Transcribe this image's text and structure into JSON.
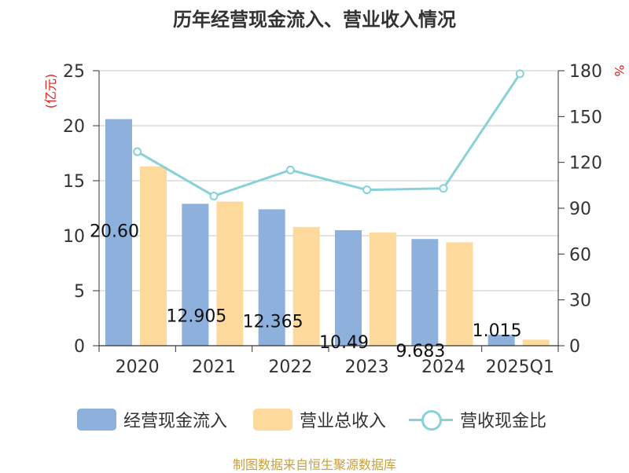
{
  "chart_data": {
    "type": "bar",
    "title": "历年经营现金流入、营业收入情况",
    "categories": [
      "2020",
      "2021",
      "2022",
      "2023",
      "2024",
      "2025Q1"
    ],
    "left_axis": {
      "unit_label": "(亿元)",
      "ylim": [
        0,
        25
      ],
      "ticks": [
        "0",
        "5",
        "10",
        "15",
        "20",
        "25"
      ]
    },
    "right_axis": {
      "unit_label": "%",
      "ylim": [
        0,
        180
      ],
      "ticks": [
        "0",
        "30",
        "60",
        "90",
        "120",
        "150",
        "180"
      ]
    },
    "grid": true,
    "legend_position": "bottom",
    "series": [
      {
        "name": "经营现金流入",
        "kind": "bar",
        "axis": "left",
        "color": "#8eb0dc",
        "values": [
          20.6,
          12.9,
          12.4,
          10.5,
          9.7,
          1.0
        ],
        "data_labels": [
          "20.60",
          "12.905",
          "12.365",
          "10.49",
          "9.683",
          "1.015"
        ]
      },
      {
        "name": "营业总收入",
        "kind": "bar",
        "axis": "left",
        "color": "#fdd99c",
        "values": [
          16.3,
          13.1,
          10.8,
          10.3,
          9.4,
          0.55
        ]
      },
      {
        "name": "营收现金比",
        "kind": "line",
        "axis": "right",
        "color": "#87d2d8",
        "values": [
          127,
          98,
          115,
          102,
          103,
          178
        ]
      }
    ]
  },
  "source": "制图数据来自恒生聚源数据库"
}
